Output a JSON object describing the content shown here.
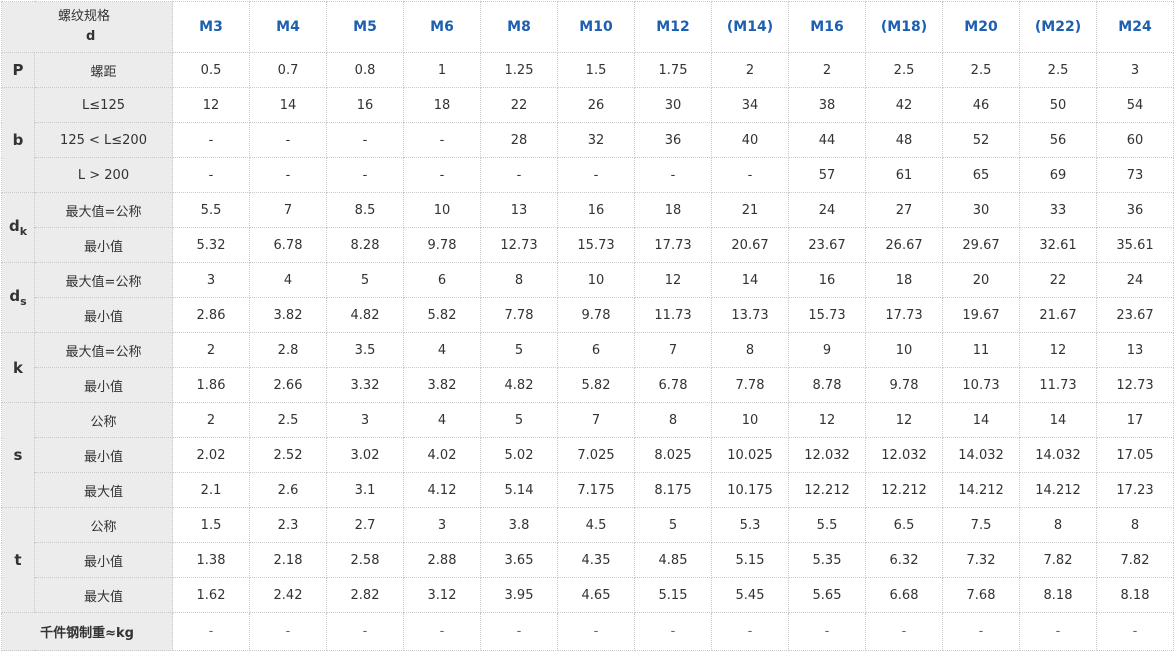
{
  "header": {
    "corner_line1": "螺纹规格",
    "corner_line2": "d",
    "sizes": [
      "M3",
      "M4",
      "M5",
      "M6",
      "M8",
      "M10",
      "M12",
      "(M14)",
      "M16",
      "(M18)",
      "M20",
      "(M22)",
      "M24"
    ]
  },
  "groups": [
    {
      "symbol": "P",
      "sub": "",
      "rows": [
        {
          "label": "螺距",
          "values": [
            "0.5",
            "0.7",
            "0.8",
            "1",
            "1.25",
            "1.5",
            "1.75",
            "2",
            "2",
            "2.5",
            "2.5",
            "2.5",
            "3"
          ]
        }
      ]
    },
    {
      "symbol": "b",
      "sub": "",
      "rows": [
        {
          "label": "L≤125",
          "values": [
            "12",
            "14",
            "16",
            "18",
            "22",
            "26",
            "30",
            "34",
            "38",
            "42",
            "46",
            "50",
            "54"
          ]
        },
        {
          "label": "125 < L≤200",
          "values": [
            "-",
            "-",
            "-",
            "-",
            "28",
            "32",
            "36",
            "40",
            "44",
            "48",
            "52",
            "56",
            "60"
          ]
        },
        {
          "label": "L > 200",
          "values": [
            "-",
            "-",
            "-",
            "-",
            "-",
            "-",
            "-",
            "-",
            "57",
            "61",
            "65",
            "69",
            "73"
          ]
        }
      ]
    },
    {
      "symbol": "d",
      "sub": "k",
      "rows": [
        {
          "label": "最大值=公称",
          "values": [
            "5.5",
            "7",
            "8.5",
            "10",
            "13",
            "16",
            "18",
            "21",
            "24",
            "27",
            "30",
            "33",
            "36"
          ]
        },
        {
          "label": "最小值",
          "values": [
            "5.32",
            "6.78",
            "8.28",
            "9.78",
            "12.73",
            "15.73",
            "17.73",
            "20.67",
            "23.67",
            "26.67",
            "29.67",
            "32.61",
            "35.61"
          ]
        }
      ]
    },
    {
      "symbol": "d",
      "sub": "s",
      "rows": [
        {
          "label": "最大值=公称",
          "values": [
            "3",
            "4",
            "5",
            "6",
            "8",
            "10",
            "12",
            "14",
            "16",
            "18",
            "20",
            "22",
            "24"
          ]
        },
        {
          "label": "最小值",
          "values": [
            "2.86",
            "3.82",
            "4.82",
            "5.82",
            "7.78",
            "9.78",
            "11.73",
            "13.73",
            "15.73",
            "17.73",
            "19.67",
            "21.67",
            "23.67"
          ]
        }
      ]
    },
    {
      "symbol": "k",
      "sub": "",
      "rows": [
        {
          "label": "最大值=公称",
          "values": [
            "2",
            "2.8",
            "3.5",
            "4",
            "5",
            "6",
            "7",
            "8",
            "9",
            "10",
            "11",
            "12",
            "13"
          ]
        },
        {
          "label": "最小值",
          "values": [
            "1.86",
            "2.66",
            "3.32",
            "3.82",
            "4.82",
            "5.82",
            "6.78",
            "7.78",
            "8.78",
            "9.78",
            "10.73",
            "11.73",
            "12.73"
          ]
        }
      ]
    },
    {
      "symbol": "s",
      "sub": "",
      "rows": [
        {
          "label": "公称",
          "values": [
            "2",
            "2.5",
            "3",
            "4",
            "5",
            "7",
            "8",
            "10",
            "12",
            "12",
            "14",
            "14",
            "17"
          ]
        },
        {
          "label": "最小值",
          "values": [
            "2.02",
            "2.52",
            "3.02",
            "4.02",
            "5.02",
            "7.025",
            "8.025",
            "10.025",
            "12.032",
            "12.032",
            "14.032",
            "14.032",
            "17.05"
          ]
        },
        {
          "label": "最大值",
          "values": [
            "2.1",
            "2.6",
            "3.1",
            "4.12",
            "5.14",
            "7.175",
            "8.175",
            "10.175",
            "12.212",
            "12.212",
            "14.212",
            "14.212",
            "17.23"
          ]
        }
      ]
    },
    {
      "symbol": "t",
      "sub": "",
      "rows": [
        {
          "label": "公称",
          "values": [
            "1.5",
            "2.3",
            "2.7",
            "3",
            "3.8",
            "4.5",
            "5",
            "5.3",
            "5.5",
            "6.5",
            "7.5",
            "8",
            "8"
          ]
        },
        {
          "label": "最小值",
          "values": [
            "1.38",
            "2.18",
            "2.58",
            "2.88",
            "3.65",
            "4.35",
            "4.85",
            "5.15",
            "5.35",
            "6.32",
            "7.32",
            "7.82",
            "7.82"
          ]
        },
        {
          "label": "最大值",
          "values": [
            "1.62",
            "2.42",
            "2.82",
            "3.12",
            "3.95",
            "4.65",
            "5.15",
            "5.45",
            "5.65",
            "6.68",
            "7.68",
            "8.18",
            "8.18"
          ]
        }
      ]
    }
  ],
  "footer": {
    "label": "千件钢制重≈kg",
    "values": [
      "-",
      "-",
      "-",
      "-",
      "-",
      "-",
      "-",
      "-",
      "-",
      "-",
      "-",
      "-",
      "-"
    ]
  },
  "colors": {
    "header_text": "#1d5fb0",
    "label_background": "#ececec",
    "footer_value_text": "#dd3333"
  }
}
